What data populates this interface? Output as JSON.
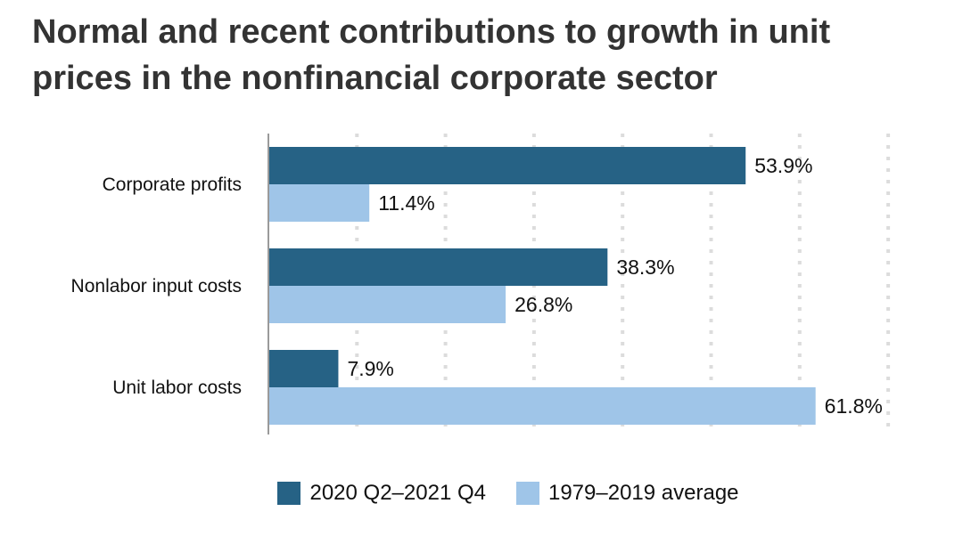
{
  "chart_data": {
    "type": "bar",
    "orientation": "horizontal",
    "title": "Normal and recent contributions to growth in unit prices in the nonfinancial corporate sector",
    "categories": [
      "Corporate profits",
      "Nonlabor input costs",
      "Unit labor costs"
    ],
    "series": [
      {
        "name": "2020 Q2–2021 Q4",
        "color": "#266285",
        "values": [
          53.9,
          38.3,
          7.9
        ],
        "labels": [
          "53.9%",
          "38.3%",
          "7.9%"
        ]
      },
      {
        "name": "1979–2019 average",
        "color": "#9fc5e8",
        "values": [
          11.4,
          26.8,
          61.8
        ],
        "labels": [
          "11.4%",
          "26.8%",
          "61.8%"
        ]
      }
    ],
    "xlim": [
      0,
      70
    ],
    "grid": true,
    "legend_position": "bottom"
  }
}
